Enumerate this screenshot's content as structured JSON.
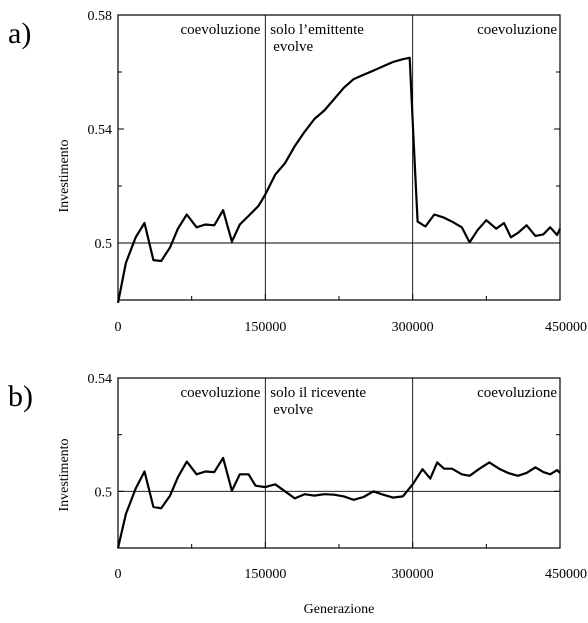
{
  "chart_data": [
    {
      "panel": "a)",
      "type": "line",
      "ylabel": "Investimento",
      "xlim": [
        0,
        450000
      ],
      "ylim": [
        0.48,
        0.58
      ],
      "yticks": [
        "0.5",
        "0.54",
        "0.58"
      ],
      "xticks": [
        "0",
        "150000",
        "300000",
        "450000"
      ],
      "reference_y": 0.5,
      "dividers": [
        150000,
        300000
      ],
      "regions": [
        {
          "lines": [
            "coevoluzione"
          ],
          "anchor": "right",
          "x": 145000
        },
        {
          "lines": [
            "solo l’emittente",
            "evolve"
          ],
          "anchor": "left",
          "x": 155000
        },
        {
          "lines": [
            "coevoluzione"
          ],
          "anchor": "right",
          "x": 447000
        }
      ],
      "x": [
        0,
        8000,
        18000,
        27000,
        36000,
        44000,
        53000,
        61000,
        70000,
        80000,
        89000,
        98000,
        107000,
        116000,
        124000,
        133000,
        143000,
        150000,
        160000,
        170000,
        180000,
        190000,
        200000,
        210000,
        220000,
        230000,
        240000,
        250000,
        260000,
        270000,
        280000,
        290000,
        297000,
        301000,
        305000,
        313000,
        322000,
        331000,
        340000,
        350000,
        358000,
        366000,
        375000,
        385000,
        393000,
        400000,
        407000,
        416000,
        425000,
        433000,
        440000,
        447000,
        450000
      ],
      "y": [
        0.479,
        0.493,
        0.502,
        0.507,
        0.494,
        0.4937,
        0.4985,
        0.505,
        0.51,
        0.5055,
        0.5065,
        0.5062,
        0.5115,
        0.5005,
        0.5065,
        0.5095,
        0.513,
        0.517,
        0.524,
        0.528,
        0.534,
        0.539,
        0.5435,
        0.5465,
        0.5505,
        0.5545,
        0.5575,
        0.559,
        0.5605,
        0.562,
        0.5635,
        0.5645,
        0.565,
        0.536,
        0.5075,
        0.5058,
        0.51,
        0.509,
        0.5075,
        0.5055,
        0.5002,
        0.5045,
        0.508,
        0.505,
        0.507,
        0.502,
        0.5035,
        0.5062,
        0.5025,
        0.503,
        0.5055,
        0.5028,
        0.505
      ]
    },
    {
      "panel": "b)",
      "type": "line",
      "ylabel": "Investimento",
      "xlabel": "Generazione",
      "xlim": [
        0,
        450000
      ],
      "ylim": [
        0.48,
        0.54
      ],
      "yticks": [
        "0.5",
        "0.54"
      ],
      "xticks": [
        "0",
        "150000",
        "300000",
        "450000"
      ],
      "reference_y": 0.5,
      "dividers": [
        150000,
        300000
      ],
      "regions": [
        {
          "lines": [
            "coevoluzione"
          ],
          "anchor": "right",
          "x": 145000
        },
        {
          "lines": [
            "solo il ricevente",
            "evolve"
          ],
          "anchor": "left",
          "x": 155000
        },
        {
          "lines": [
            "coevoluzione"
          ],
          "anchor": "right",
          "x": 447000
        }
      ],
      "x": [
        0,
        8000,
        18000,
        27000,
        36000,
        44000,
        53000,
        61000,
        70000,
        80000,
        89000,
        98000,
        107000,
        116000,
        124000,
        133000,
        140000,
        150000,
        160000,
        170000,
        180000,
        190000,
        200000,
        210000,
        220000,
        230000,
        240000,
        250000,
        260000,
        270000,
        280000,
        290000,
        300000,
        310000,
        318000,
        325000,
        332000,
        340000,
        350000,
        358000,
        368000,
        378000,
        388000,
        397000,
        407000,
        416000,
        425000,
        433000,
        440000,
        447000,
        450000
      ],
      "y": [
        0.48,
        0.492,
        0.501,
        0.507,
        0.4945,
        0.494,
        0.4985,
        0.505,
        0.5105,
        0.506,
        0.507,
        0.5068,
        0.5118,
        0.5002,
        0.506,
        0.506,
        0.502,
        0.5015,
        0.5025,
        0.5,
        0.4975,
        0.499,
        0.4985,
        0.499,
        0.4988,
        0.4982,
        0.497,
        0.498,
        0.5,
        0.4988,
        0.4978,
        0.4982,
        0.5025,
        0.5078,
        0.5045,
        0.5102,
        0.508,
        0.508,
        0.506,
        0.5055,
        0.508,
        0.5102,
        0.508,
        0.5065,
        0.5055,
        0.5065,
        0.5085,
        0.5068,
        0.506,
        0.5075,
        0.5065
      ]
    }
  ]
}
